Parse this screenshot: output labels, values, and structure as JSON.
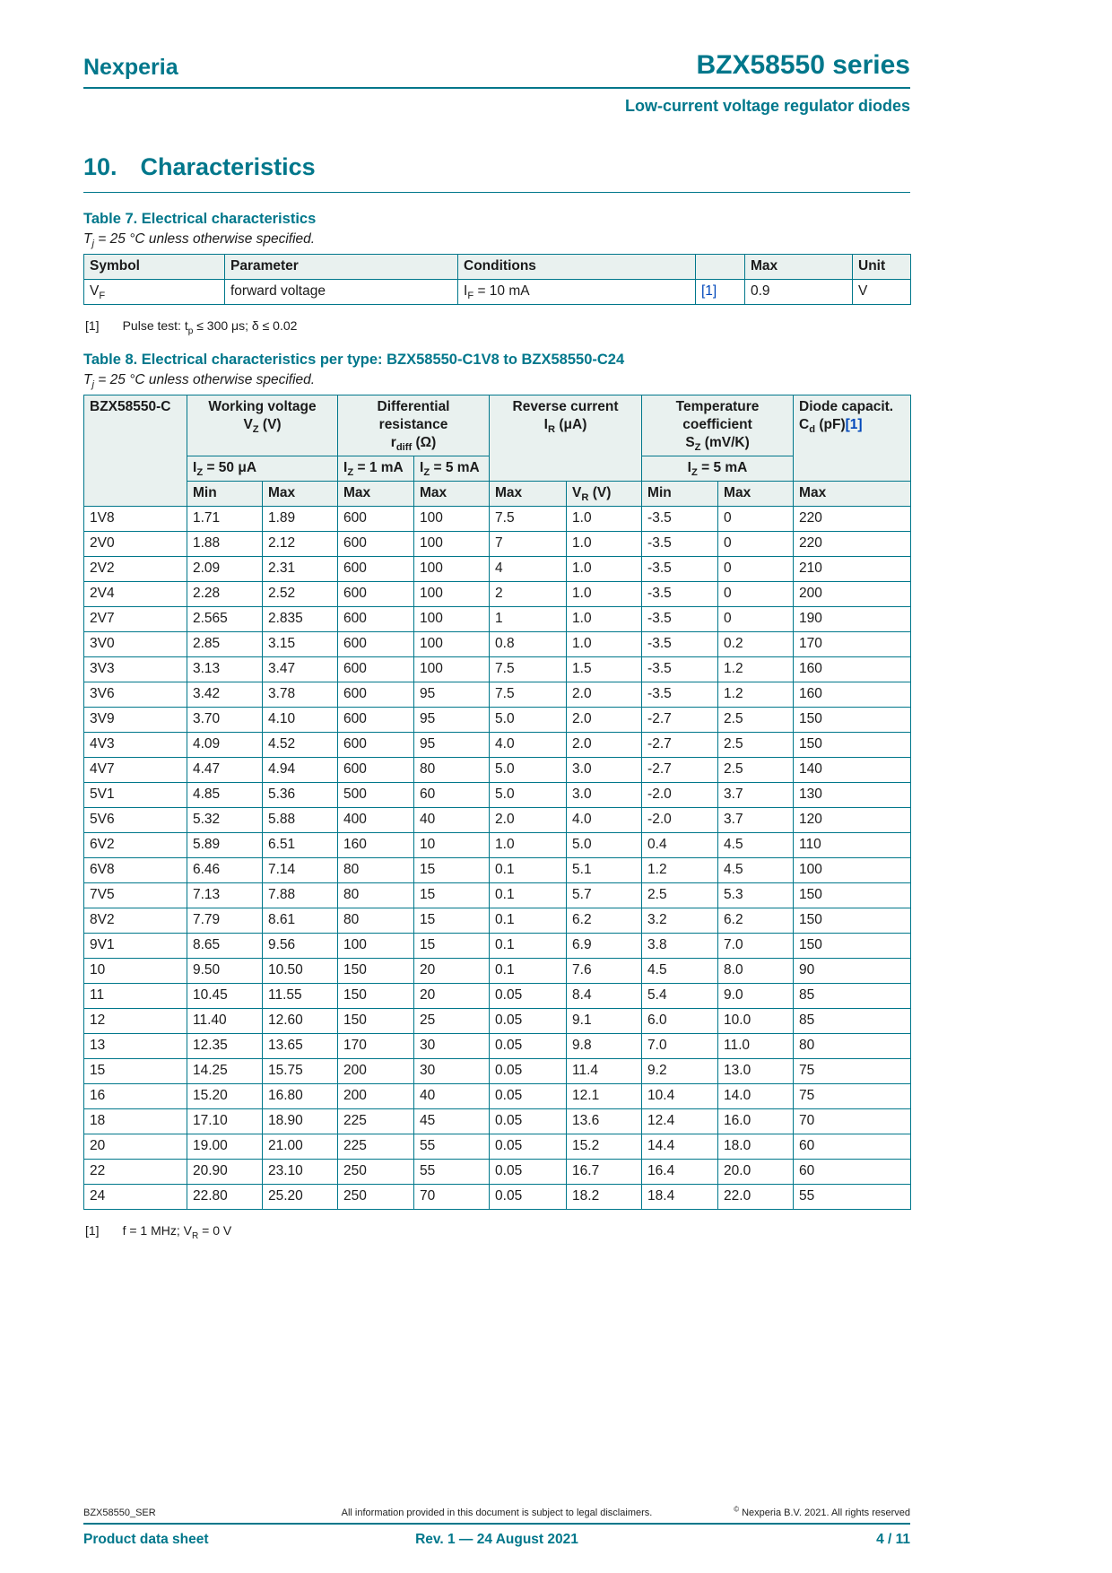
{
  "colors": {
    "teal": "#00778b",
    "header_bg": "#e9f1ef",
    "link_blue": "#0047ba"
  },
  "header": {
    "brand": "Nexperia",
    "series": "BZX58550 series",
    "subtitle": "Low-current voltage regulator diodes"
  },
  "section": {
    "number": "10.",
    "title": "Characteristics"
  },
  "table7": {
    "caption": "Table 7. Electrical characteristics",
    "condition": [
      {
        "t": "T"
      },
      {
        "sub": "j"
      },
      {
        "t": " = 25 °C unless otherwise specified."
      }
    ],
    "col_headers": [
      "Symbol",
      "Parameter",
      "Conditions",
      "",
      "Max",
      "Unit"
    ],
    "row": {
      "symbol": [
        {
          "t": "V"
        },
        {
          "sub": "F"
        }
      ],
      "parameter": "forward voltage",
      "conditions": [
        {
          "t": "I"
        },
        {
          "sub": "F"
        },
        {
          "t": " = 10 mA"
        }
      ],
      "ref": "[1]",
      "max": "0.9",
      "unit": "V"
    },
    "footnote": {
      "index": "[1]",
      "text": [
        {
          "t": "Pulse test: t"
        },
        {
          "sub": "p"
        },
        {
          "t": " ≤ 300 μs; δ ≤ 0.02"
        }
      ]
    }
  },
  "table8": {
    "caption": "Table 8. Electrical characteristics per type: BZX58550-C1V8 to BZX58550-C24",
    "condition": [
      {
        "t": "T"
      },
      {
        "sub": "j"
      },
      {
        "t": " = 25 °C unless otherwise specified."
      }
    ],
    "head": {
      "type": "BZX58550-C",
      "working": [
        {
          "t": "Working voltage"
        },
        {
          "br": true
        },
        {
          "t": "V"
        },
        {
          "sub": "Z"
        },
        {
          "t": " (V)"
        }
      ],
      "diff": [
        {
          "t": "Differential"
        },
        {
          "br": true
        },
        {
          "t": "resistance"
        },
        {
          "br": true
        },
        {
          "t": "r"
        },
        {
          "sub": "diff"
        },
        {
          "t": " (Ω)"
        }
      ],
      "reverse": [
        {
          "t": "Reverse current"
        },
        {
          "br": true
        },
        {
          "t": "I"
        },
        {
          "sub": "R"
        },
        {
          "t": " (μA)"
        }
      ],
      "temp": [
        {
          "t": "Temperature"
        },
        {
          "br": true
        },
        {
          "t": "coefficient"
        },
        {
          "br": true
        },
        {
          "t": "S"
        },
        {
          "sub": "Z"
        },
        {
          "t": " (mV/K)"
        }
      ],
      "cap": [
        {
          "t": "Diode capacit."
        },
        {
          "br": true
        },
        {
          "t": "C"
        },
        {
          "sub": "d"
        },
        {
          "t": " (pF)"
        },
        {
          "link": "[1]"
        }
      ],
      "iz50": [
        {
          "t": "I"
        },
        {
          "sub": "Z"
        },
        {
          "t": " = 50 μA"
        }
      ],
      "iz1": [
        {
          "t": "I"
        },
        {
          "sub": "Z"
        },
        {
          "t": " = 1 mA"
        }
      ],
      "iz5a": [
        {
          "t": "I"
        },
        {
          "sub": "Z"
        },
        {
          "t": " = 5 mA"
        }
      ],
      "iz5b": [
        {
          "t": "I"
        },
        {
          "sub": "Z"
        },
        {
          "t": " = 5 mA"
        }
      ],
      "min1": "Min",
      "max1": "Max",
      "max2": "Max",
      "max3": "Max",
      "max4": "Max",
      "vr": [
        {
          "t": "V"
        },
        {
          "sub": "R"
        },
        {
          "t": " (V)"
        }
      ],
      "min2": "Min",
      "max5": "Max",
      "max6": "Max"
    },
    "rows": [
      [
        "1V8",
        "1.71",
        "1.89",
        "600",
        "100",
        "7.5",
        "1.0",
        "-3.5",
        "0",
        "220"
      ],
      [
        "2V0",
        "1.88",
        "2.12",
        "600",
        "100",
        "7",
        "1.0",
        "-3.5",
        "0",
        "220"
      ],
      [
        "2V2",
        "2.09",
        "2.31",
        "600",
        "100",
        "4",
        "1.0",
        "-3.5",
        "0",
        "210"
      ],
      [
        "2V4",
        "2.28",
        "2.52",
        "600",
        "100",
        "2",
        "1.0",
        "-3.5",
        "0",
        "200"
      ],
      [
        "2V7",
        "2.565",
        "2.835",
        "600",
        "100",
        "1",
        "1.0",
        "-3.5",
        "0",
        "190"
      ],
      [
        "3V0",
        "2.85",
        "3.15",
        "600",
        "100",
        "0.8",
        "1.0",
        "-3.5",
        "0.2",
        "170"
      ],
      [
        "3V3",
        "3.13",
        "3.47",
        "600",
        "100",
        "7.5",
        "1.5",
        "-3.5",
        "1.2",
        "160"
      ],
      [
        "3V6",
        "3.42",
        "3.78",
        "600",
        "95",
        "7.5",
        "2.0",
        "-3.5",
        "1.2",
        "160"
      ],
      [
        "3V9",
        "3.70",
        "4.10",
        "600",
        "95",
        "5.0",
        "2.0",
        "-2.7",
        "2.5",
        "150"
      ],
      [
        "4V3",
        "4.09",
        "4.52",
        "600",
        "95",
        "4.0",
        "2.0",
        "-2.7",
        "2.5",
        "150"
      ],
      [
        "4V7",
        "4.47",
        "4.94",
        "600",
        "80",
        "5.0",
        "3.0",
        "-2.7",
        "2.5",
        "140"
      ],
      [
        "5V1",
        "4.85",
        "5.36",
        "500",
        "60",
        "5.0",
        "3.0",
        "-2.0",
        "3.7",
        "130"
      ],
      [
        "5V6",
        "5.32",
        "5.88",
        "400",
        "40",
        "2.0",
        "4.0",
        "-2.0",
        "3.7",
        "120"
      ],
      [
        "6V2",
        "5.89",
        "6.51",
        "160",
        "10",
        "1.0",
        "5.0",
        "0.4",
        "4.5",
        "110"
      ],
      [
        "6V8",
        "6.46",
        "7.14",
        "80",
        "15",
        "0.1",
        "5.1",
        "1.2",
        "4.5",
        "100"
      ],
      [
        "7V5",
        "7.13",
        "7.88",
        "80",
        "15",
        "0.1",
        "5.7",
        "2.5",
        "5.3",
        "150"
      ],
      [
        "8V2",
        "7.79",
        "8.61",
        "80",
        "15",
        "0.1",
        "6.2",
        "3.2",
        "6.2",
        "150"
      ],
      [
        "9V1",
        "8.65",
        "9.56",
        "100",
        "15",
        "0.1",
        "6.9",
        "3.8",
        "7.0",
        "150"
      ],
      [
        "10",
        "9.50",
        "10.50",
        "150",
        "20",
        "0.1",
        "7.6",
        "4.5",
        "8.0",
        "90"
      ],
      [
        "11",
        "10.45",
        "11.55",
        "150",
        "20",
        "0.05",
        "8.4",
        "5.4",
        "9.0",
        "85"
      ],
      [
        "12",
        "11.40",
        "12.60",
        "150",
        "25",
        "0.05",
        "9.1",
        "6.0",
        "10.0",
        "85"
      ],
      [
        "13",
        "12.35",
        "13.65",
        "170",
        "30",
        "0.05",
        "9.8",
        "7.0",
        "11.0",
        "80"
      ],
      [
        "15",
        "14.25",
        "15.75",
        "200",
        "30",
        "0.05",
        "11.4",
        "9.2",
        "13.0",
        "75"
      ],
      [
        "16",
        "15.20",
        "16.80",
        "200",
        "40",
        "0.05",
        "12.1",
        "10.4",
        "14.0",
        "75"
      ],
      [
        "18",
        "17.10",
        "18.90",
        "225",
        "45",
        "0.05",
        "13.6",
        "12.4",
        "16.0",
        "70"
      ],
      [
        "20",
        "19.00",
        "21.00",
        "225",
        "55",
        "0.05",
        "15.2",
        "14.4",
        "18.0",
        "60"
      ],
      [
        "22",
        "20.90",
        "23.10",
        "250",
        "55",
        "0.05",
        "16.7",
        "16.4",
        "20.0",
        "60"
      ],
      [
        "24",
        "22.80",
        "25.20",
        "250",
        "70",
        "0.05",
        "18.2",
        "18.4",
        "22.0",
        "55"
      ]
    ],
    "footnote": {
      "index": "[1]",
      "text": [
        {
          "t": "f = 1 MHz; V"
        },
        {
          "sub": "R"
        },
        {
          "t": " = 0 V"
        }
      ]
    }
  },
  "footer": {
    "doc_id": "BZX58550_SER",
    "disclaimer": "All information provided in this document is subject to legal disclaimers.",
    "copyright": [
      {
        "sup": "©"
      },
      {
        "t": " Nexperia B.V. 2021. All rights reserved"
      }
    ],
    "doc_type": "Product data sheet",
    "revision": "Rev. 1 — 24 August 2021",
    "page": "4 / 11"
  }
}
